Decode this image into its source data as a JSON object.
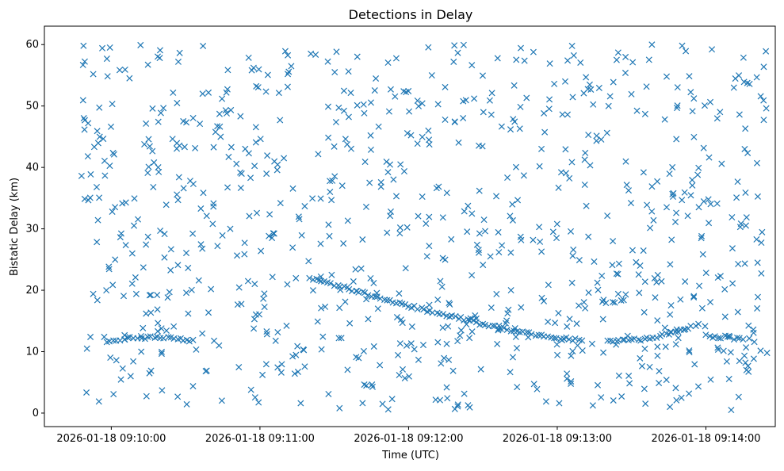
{
  "chart_data": {
    "type": "scatter",
    "title": "Detections in Delay",
    "xlabel": "Time (UTC)",
    "ylabel": "Bistatic Delay (km)",
    "x_unit": "UTC datetime",
    "xlim": [
      "2026-01-18 09:09:33",
      "2026-01-18 09:14:28"
    ],
    "ylim": [
      -2.2,
      63
    ],
    "x_ticks": [
      "2026-01-18 09:10:00",
      "2026-01-18 09:11:00",
      "2026-01-18 09:12:00",
      "2026-01-18 09:13:00",
      "2026-01-18 09:14:00"
    ],
    "y_ticks": [
      0,
      10,
      20,
      30,
      40,
      50,
      60
    ],
    "marker": "x",
    "color": "#1f77b4",
    "grid": false,
    "legend": "none",
    "noise_detections": {
      "description_note_excluded": true,
      "x_range": [
        "2026-01-18 09:09:48",
        "2026-01-18 09:14:25"
      ],
      "y_range": [
        0.5,
        60
      ],
      "count": 860
    },
    "tracks": [
      {
        "points": [
          {
            "x": "2026-01-18 09:09:58",
            "y": 11.8
          },
          {
            "x": "2026-01-18 09:10:05",
            "y": 12.1
          },
          {
            "x": "2026-01-18 09:10:12",
            "y": 12.3
          },
          {
            "x": "2026-01-18 09:10:20",
            "y": 12.2
          },
          {
            "x": "2026-01-18 09:10:28",
            "y": 12.0
          },
          {
            "x": "2026-01-18 09:10:33",
            "y": 11.9
          }
        ]
      },
      {
        "points": [
          {
            "x": "2026-01-18 09:11:20",
            "y": 22.0
          },
          {
            "x": "2026-01-18 09:11:35",
            "y": 20.3
          },
          {
            "x": "2026-01-18 09:11:50",
            "y": 18.6
          },
          {
            "x": "2026-01-18 09:12:05",
            "y": 17.0
          },
          {
            "x": "2026-01-18 09:12:20",
            "y": 15.5
          },
          {
            "x": "2026-01-18 09:12:35",
            "y": 14.0
          },
          {
            "x": "2026-01-18 09:12:50",
            "y": 12.8
          },
          {
            "x": "2026-01-18 09:13:05",
            "y": 12.0
          },
          {
            "x": "2026-01-18 09:13:10",
            "y": 11.8
          }
        ]
      },
      {
        "points": [
          {
            "x": "2026-01-18 09:13:20",
            "y": 11.6
          },
          {
            "x": "2026-01-18 09:13:35",
            "y": 12.0
          },
          {
            "x": "2026-01-18 09:13:50",
            "y": 13.5
          },
          {
            "x": "2026-01-18 09:13:57",
            "y": 14.5
          }
        ]
      },
      {
        "points": [
          {
            "x": "2026-01-18 09:14:00",
            "y": 12.5
          },
          {
            "x": "2026-01-18 09:14:10",
            "y": 12.3
          },
          {
            "x": "2026-01-18 09:14:15",
            "y": 12.0
          }
        ]
      }
    ]
  }
}
